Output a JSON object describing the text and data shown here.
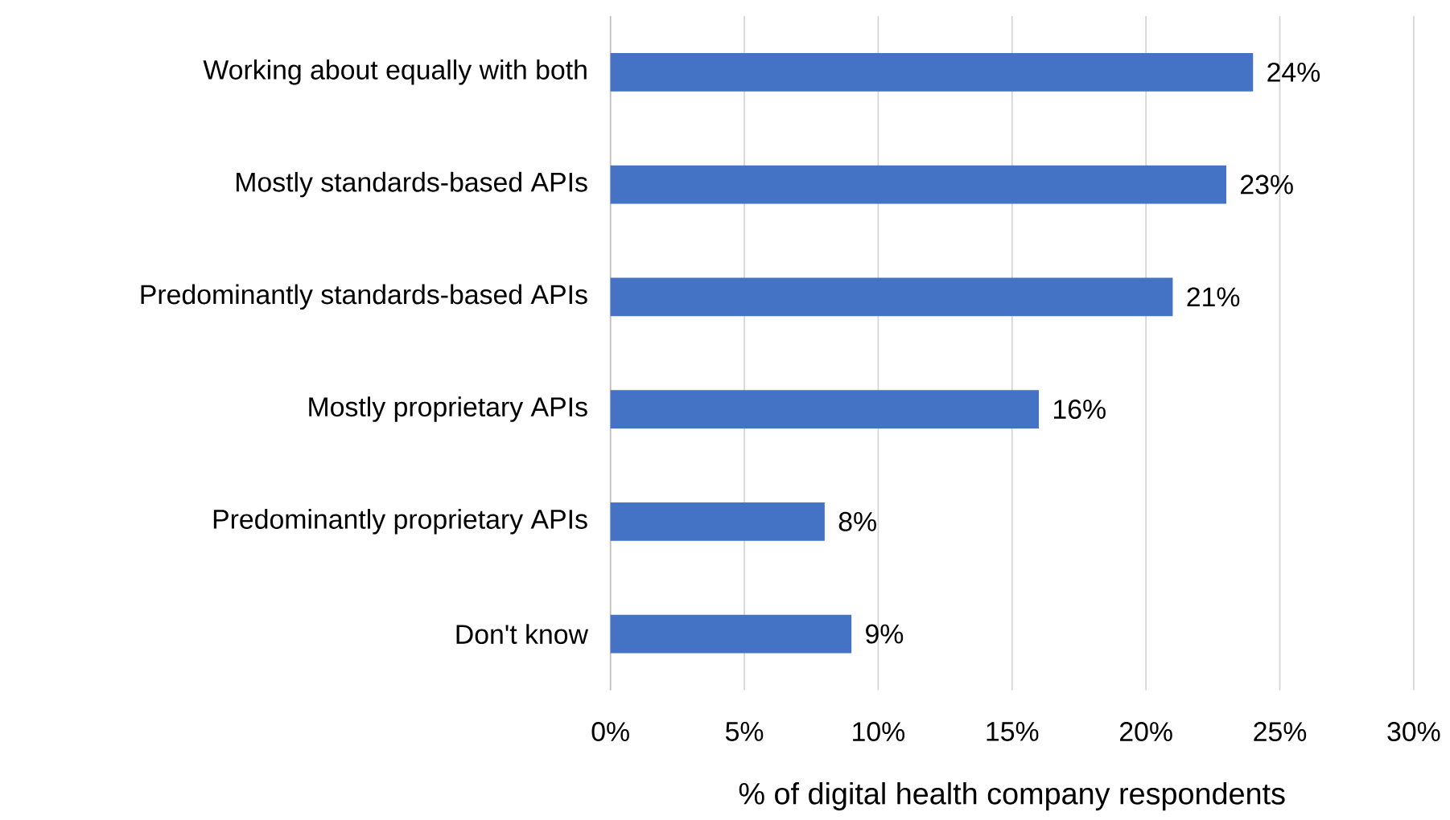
{
  "chart_data": {
    "type": "bar",
    "orientation": "horizontal",
    "xlabel": "% of digital health company respondents",
    "categories": [
      "Working about equally with both",
      "Mostly standards-based APIs",
      "Predominantly standards-based APIs",
      "Mostly proprietary APIs",
      "Predominantly proprietary APIs",
      "Don't know"
    ],
    "values": [
      24,
      23,
      21,
      16,
      8,
      9
    ],
    "value_labels": [
      "24%",
      "23%",
      "21%",
      "16%",
      "8%",
      "9%"
    ],
    "color": "#4472c4",
    "xlim": [
      0,
      30
    ],
    "xticks": [
      {
        "value": 0,
        "label": "0%"
      },
      {
        "value": 5,
        "label": "5%"
      },
      {
        "value": 10,
        "label": "10%"
      },
      {
        "value": 15,
        "label": "15%"
      },
      {
        "value": 20,
        "label": "20%"
      },
      {
        "value": 25,
        "label": "25%"
      },
      {
        "value": 30,
        "label": "30%"
      }
    ],
    "grid": "x"
  }
}
